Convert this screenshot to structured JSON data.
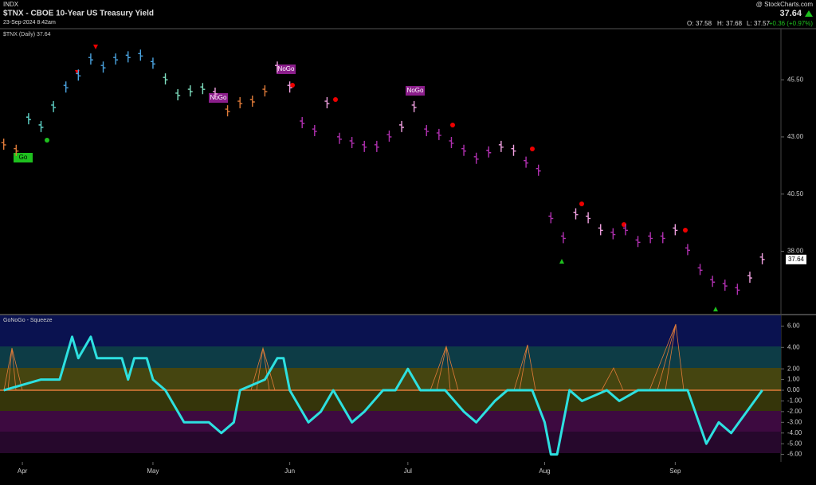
{
  "header": {
    "exchange": "INDX",
    "title": "$TNX - CBOE 10-Year US Treasury Yield",
    "date": "23-Sep-2024 8:42am",
    "source": "@ StockCharts.com",
    "last": 37.64,
    "change": "+0.36 (+0.97%)",
    "open_label": "O:",
    "open": 37.58,
    "high_label": "H:",
    "high": 37.68,
    "low_label": "L:",
    "low": 37.57
  },
  "annotations": [
    "Go",
    "NoGo",
    "NoGo",
    "NoGo"
  ],
  "chart_data": [
    {
      "type": "pricebar",
      "legend": "$TNX (Daily) 37.64",
      "xlim": [
        -0.6,
        125
      ],
      "ylim": [
        35.3,
        47.7
      ],
      "xticks": [
        {
          "value": 3,
          "label": "Apr"
        },
        {
          "value": 24,
          "label": "May"
        },
        {
          "value": 46,
          "label": "Jun"
        },
        {
          "value": 65,
          "label": "Jul"
        },
        {
          "value": 87,
          "label": "Aug"
        },
        {
          "value": 108,
          "label": "Sep"
        }
      ],
      "yticks": [
        {
          "value": 45.5,
          "label": "45.50"
        },
        {
          "value": 43,
          "label": "43.00"
        },
        {
          "value": 40.5,
          "label": "40.50"
        },
        {
          "value": 38,
          "label": "38.00"
        }
      ],
      "last_label": 37.64,
      "x": [
        0,
        2,
        4,
        6,
        8,
        10,
        12,
        14,
        16,
        18,
        20,
        22,
        24,
        26,
        28,
        30,
        32,
        34,
        36,
        38,
        40,
        42,
        44,
        46,
        48,
        50,
        52,
        54,
        56,
        58,
        60,
        62,
        64,
        66,
        68,
        70,
        72,
        74,
        76,
        78,
        80,
        82,
        84,
        86,
        88,
        90,
        92,
        94,
        96,
        98,
        100,
        102,
        104,
        106,
        108,
        110,
        112,
        114,
        116,
        118,
        120,
        122
      ],
      "values": [
        42.65,
        42.38,
        43.76,
        43.42,
        44.29,
        45.15,
        45.67,
        46.37,
        46.02,
        46.37,
        46.47,
        46.54,
        46.19,
        45.5,
        44.81,
        44.98,
        45.08,
        44.88,
        44.11,
        44.46,
        44.53,
        44.98,
        46.02,
        45.15,
        43.59,
        43.24,
        44.46,
        42.9,
        42.72,
        42.55,
        42.55,
        43.0,
        43.42,
        44.29,
        43.24,
        43.07,
        42.72,
        42.38,
        42.03,
        42.31,
        42.55,
        42.38,
        41.86,
        41.51,
        39.43,
        38.56,
        39.6,
        39.43,
        38.91,
        38.73,
        38.91,
        38.39,
        38.56,
        38.56,
        38.91,
        38.04,
        37.17,
        36.65,
        36.48,
        36.3,
        36.83,
        37.64
      ],
      "colors": [
        "#e07b39",
        "#e07b39",
        "#5fd3c8",
        "#5fd3c8",
        "#5fd3c8",
        "#4aa3df",
        "#4aa3df",
        "#4aa3df",
        "#4aa3df",
        "#4aa3df",
        "#4aa3df",
        "#4aa3df",
        "#4aa3df",
        "#7fe0c0",
        "#7fe0c0",
        "#7fe0c0",
        "#7fe0c0",
        "#f0a0e0",
        "#e07b39",
        "#e07b39",
        "#e07b39",
        "#e07b39",
        "#f0a0e0",
        "#f0a0e0",
        "#b030b0",
        "#b030b0",
        "#f0a0e0",
        "#b030b0",
        "#b030b0",
        "#b030b0",
        "#b030b0",
        "#b030b0",
        "#f0a0e0",
        "#f0a0e0",
        "#b030b0",
        "#b030b0",
        "#b030b0",
        "#b030b0",
        "#b030b0",
        "#b030b0",
        "#f0a0e0",
        "#f0a0e0",
        "#b030b0",
        "#b030b0",
        "#b030b0",
        "#b030b0",
        "#f0a0e0",
        "#f0a0e0",
        "#f0a0e0",
        "#b030b0",
        "#b030b0",
        "#b030b0",
        "#b030b0",
        "#b030b0",
        "#f0a0e0",
        "#b030b0",
        "#b030b0",
        "#b030b0",
        "#b030b0",
        "#b030b0",
        "#f0a0e0",
        "#f0a0e0"
      ]
    },
    {
      "type": "line",
      "legend": "GoNoGo - Squeeze",
      "color": "#2de0e0",
      "xlim": [
        -0.6,
        125
      ],
      "ylim": [
        -6.7,
        7
      ],
      "yticks": [
        {
          "value": 6,
          "label": "6.00"
        },
        {
          "value": 4,
          "label": "4.00"
        },
        {
          "value": 2,
          "label": "2.00"
        },
        {
          "value": 1,
          "label": "1.00"
        },
        {
          "value": 0,
          "label": "0.00"
        },
        {
          "value": -1,
          "label": "-1.00"
        },
        {
          "value": -2,
          "label": "-2.00"
        },
        {
          "value": -3,
          "label": "-3.00"
        },
        {
          "value": -4,
          "label": "-4.00"
        },
        {
          "value": -5,
          "label": "-5.00"
        },
        {
          "value": -6,
          "label": "-6.00"
        }
      ],
      "x": [
        0,
        6,
        9,
        11,
        12,
        14,
        15,
        19,
        20,
        21,
        23,
        24,
        26,
        29,
        33,
        35,
        37,
        38,
        42,
        44,
        45,
        46,
        49,
        51,
        53,
        56,
        58,
        61,
        63,
        65,
        67,
        71,
        74,
        76,
        79,
        81,
        85,
        87,
        88,
        89,
        91,
        93,
        97,
        99,
        102,
        110,
        113,
        115,
        117,
        122
      ],
      "values": [
        0,
        1,
        1,
        5,
        3,
        5,
        3,
        3,
        1,
        3,
        3,
        1,
        0,
        -3,
        -3,
        -4,
        -3,
        0,
        1,
        3,
        3,
        0,
        -3,
        -2,
        0,
        -3,
        -2,
        0,
        0,
        2,
        0,
        0,
        -2,
        -3,
        -1,
        0,
        0,
        -3,
        -6,
        -6,
        0,
        -1,
        0,
        -1,
        0,
        0,
        -5,
        -3,
        -4,
        0
      ]
    }
  ]
}
